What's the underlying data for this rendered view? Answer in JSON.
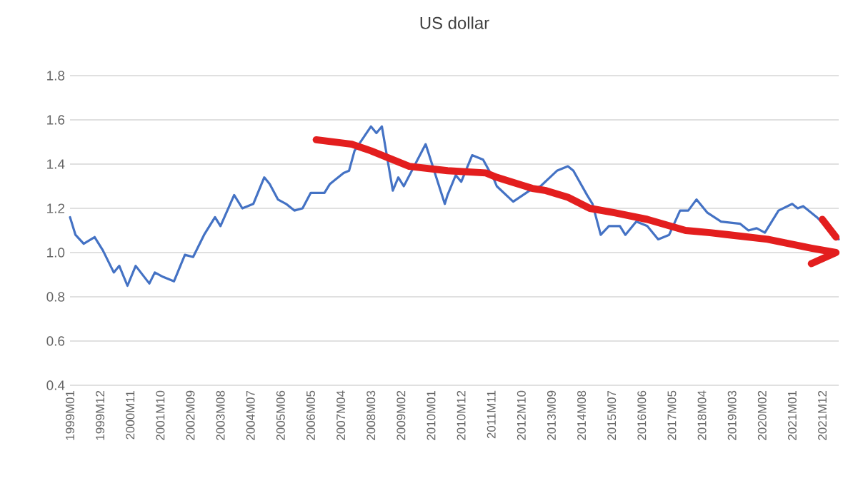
{
  "chart_data": {
    "type": "line",
    "title": "US dollar",
    "xlim": [
      "1999-01",
      "2022-06"
    ],
    "xticks": [
      {
        "value": "1999-01",
        "label": "1999M01"
      },
      {
        "value": "1999-12",
        "label": "1999M12"
      },
      {
        "value": "2000-11",
        "label": "2000M11"
      },
      {
        "value": "2001-10",
        "label": "2001M10"
      },
      {
        "value": "2002-09",
        "label": "2002M09"
      },
      {
        "value": "2003-08",
        "label": "2003M08"
      },
      {
        "value": "2004-07",
        "label": "2004M07"
      },
      {
        "value": "2005-06",
        "label": "2005M06"
      },
      {
        "value": "2006-05",
        "label": "2006M05"
      },
      {
        "value": "2007-04",
        "label": "2007M04"
      },
      {
        "value": "2008-03",
        "label": "2008M03"
      },
      {
        "value": "2009-02",
        "label": "2009M02"
      },
      {
        "value": "2010-01",
        "label": "2010M01"
      },
      {
        "value": "2010-12",
        "label": "2010M12"
      },
      {
        "value": "2011-11",
        "label": "2011M11"
      },
      {
        "value": "2012-10",
        "label": "2012M10"
      },
      {
        "value": "2013-09",
        "label": "2013M09"
      },
      {
        "value": "2014-08",
        "label": "2014M08"
      },
      {
        "value": "2015-07",
        "label": "2015M07"
      },
      {
        "value": "2016-06",
        "label": "2016M06"
      },
      {
        "value": "2017-05",
        "label": "2017M05"
      },
      {
        "value": "2018-04",
        "label": "2018M04"
      },
      {
        "value": "2019-03",
        "label": "2019M03"
      },
      {
        "value": "2020-02",
        "label": "2020M02"
      },
      {
        "value": "2021-01",
        "label": "2021M01"
      },
      {
        "value": "2021-12",
        "label": "2021M12"
      }
    ],
    "ylim": [
      0.4,
      1.8
    ],
    "yticks": [
      0.4,
      0.6,
      0.8,
      {
        "value": 1,
        "label": "1.0"
      },
      1.2,
      1.4,
      1.6,
      1.8
    ],
    "grid": "y",
    "marker": "none",
    "line_style": "solid",
    "series": [
      {
        "color": "#4472c4",
        "x": [
          "1999-01",
          "1999-03",
          "1999-06",
          "1999-10",
          "2000-01",
          "2000-05",
          "2000-07",
          "2000-10",
          "2001-01",
          "2001-06",
          "2001-08",
          "2001-11",
          "2002-03",
          "2002-07",
          "2002-10",
          "2003-02",
          "2003-06",
          "2003-08",
          "2004-01",
          "2004-04",
          "2004-08",
          "2004-12",
          "2005-02",
          "2005-05",
          "2005-08",
          "2005-11",
          "2006-02",
          "2006-05",
          "2006-10",
          "2006-12",
          "2007-05",
          "2007-07",
          "2007-09",
          "2008-03",
          "2008-05",
          "2008-07",
          "2008-11",
          "2009-01",
          "2009-03",
          "2009-11",
          "2010-06",
          "2010-07",
          "2010-10",
          "2010-12",
          "2011-04",
          "2011-08",
          "2011-12",
          "2012-01",
          "2012-07",
          "2013-01",
          "2013-05",
          "2013-11",
          "2014-03",
          "2014-05",
          "2014-10",
          "2014-12",
          "2015-03",
          "2015-06",
          "2015-10",
          "2015-12",
          "2016-04",
          "2016-08",
          "2016-12",
          "2017-04",
          "2017-08",
          "2017-11",
          "2018-02",
          "2018-06",
          "2018-11",
          "2019-06",
          "2019-09",
          "2019-12",
          "2020-03",
          "2020-08",
          "2021-01",
          "2021-03",
          "2021-05",
          "2021-10",
          "2022-03",
          "2022-06"
        ],
        "values": [
          1.16,
          1.08,
          1.04,
          1.07,
          1.01,
          0.91,
          0.94,
          0.85,
          0.94,
          0.86,
          0.91,
          0.89,
          0.87,
          0.99,
          0.98,
          1.08,
          1.16,
          1.12,
          1.26,
          1.2,
          1.22,
          1.34,
          1.31,
          1.24,
          1.22,
          1.19,
          1.2,
          1.27,
          1.27,
          1.31,
          1.36,
          1.37,
          1.46,
          1.57,
          1.54,
          1.57,
          1.28,
          1.34,
          1.3,
          1.49,
          1.22,
          1.26,
          1.35,
          1.32,
          1.44,
          1.42,
          1.33,
          1.3,
          1.23,
          1.28,
          1.3,
          1.37,
          1.39,
          1.37,
          1.26,
          1.22,
          1.08,
          1.12,
          1.12,
          1.08,
          1.14,
          1.12,
          1.06,
          1.08,
          1.19,
          1.19,
          1.24,
          1.18,
          1.14,
          1.13,
          1.1,
          1.11,
          1.09,
          1.19,
          1.22,
          1.2,
          1.21,
          1.16,
          null,
          1.06
        ]
      },
      {
        "color": "#e31e1e",
        "x": [
          "2006-07",
          "2007-08",
          "2008-03",
          "2009-05",
          "2010-07",
          "2011-09",
          "2012-01",
          "2013-02",
          "2013-07",
          "2014-03",
          "2014-11",
          "2015-08",
          "2016-08",
          "2017-10",
          "2018-07",
          "2020-04",
          "2021-08",
          "2022-05",
          "2021-08"
        ],
        "values": [
          1.51,
          1.49,
          1.46,
          1.39,
          1.37,
          1.36,
          1.34,
          1.29,
          1.28,
          1.25,
          1.2,
          1.18,
          1.15,
          1.1,
          1.09,
          1.06,
          1.02,
          1.0,
          0.95
        ]
      },
      {
        "color": "#e31e1e",
        "x": [
          "2021-12",
          "2022-05"
        ],
        "values": [
          1.15,
          1.07
        ]
      }
    ]
  }
}
